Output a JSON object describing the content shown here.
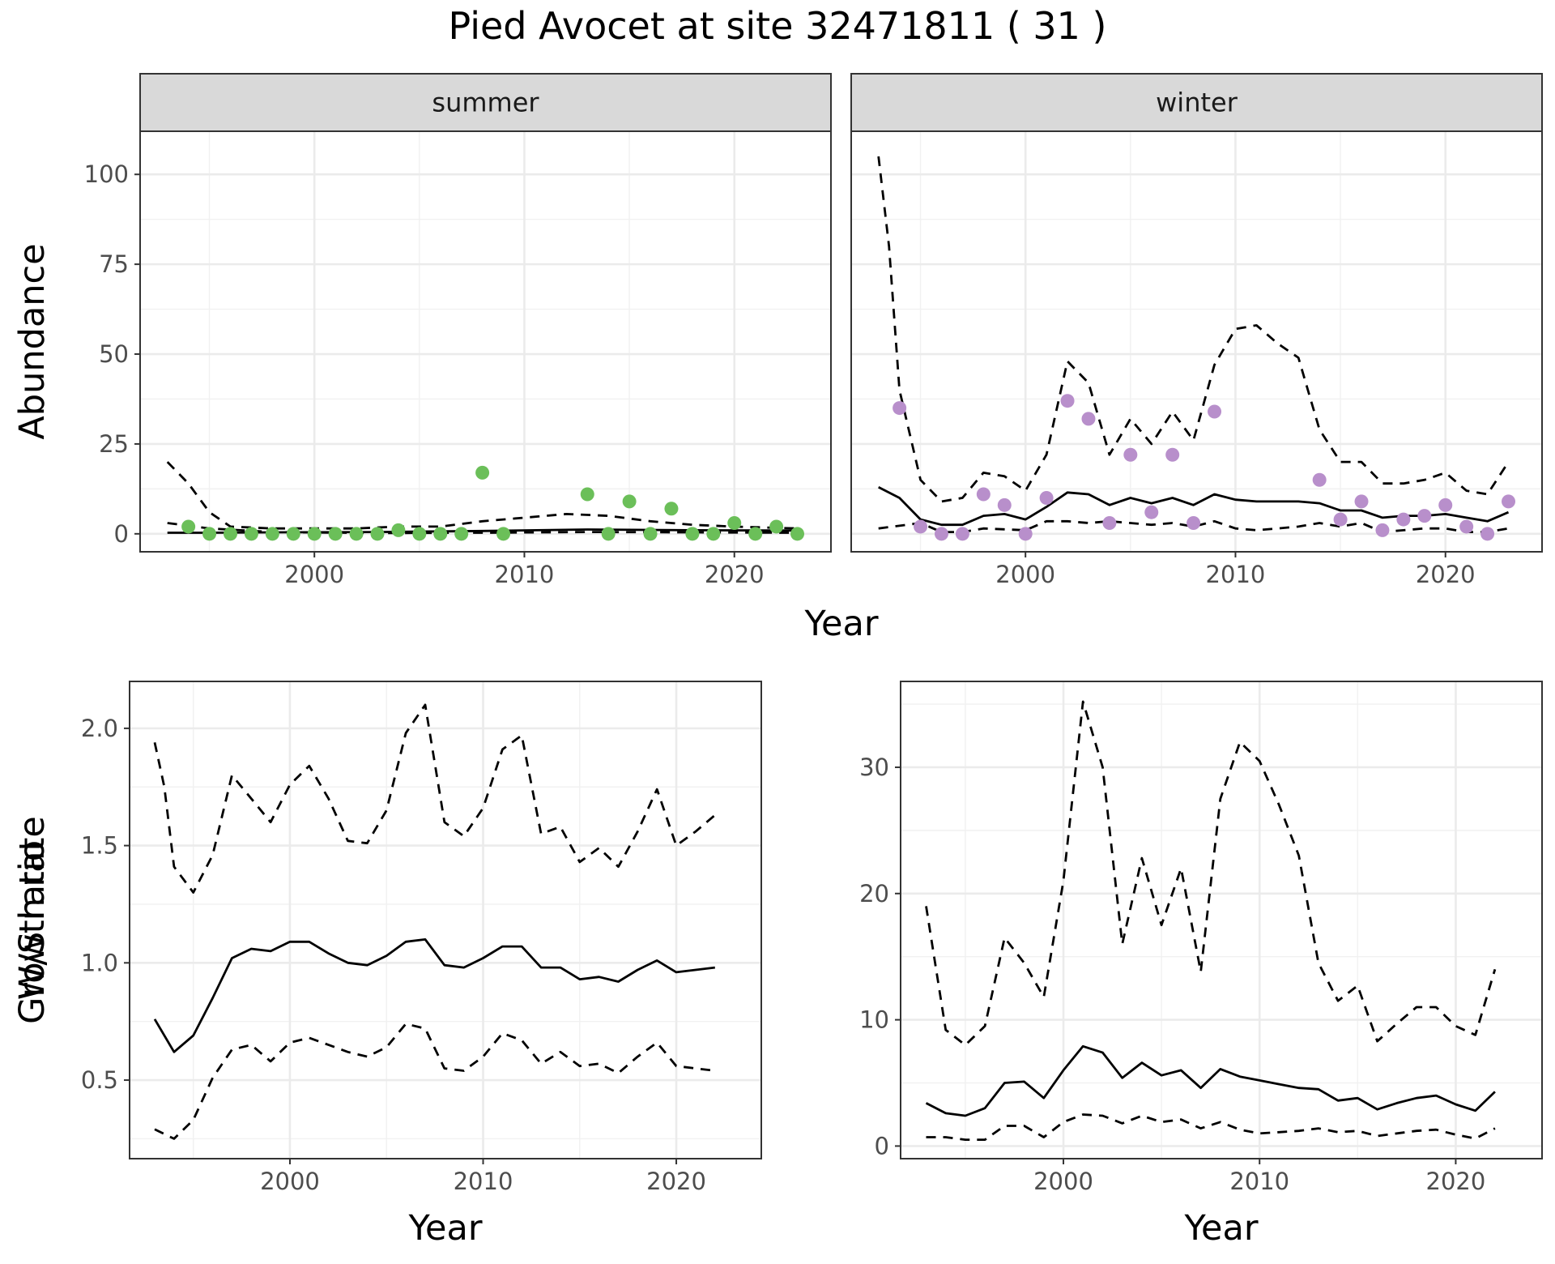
{
  "figure": {
    "title": "Pied Avocet at site 32471811 ( 31 )"
  },
  "chart_data": [
    {
      "type": "scatter",
      "title": "Pied Avocet at site 32471811 ( 31 )",
      "facet": "summer",
      "xlabel": "Year",
      "ylabel": "Abundance",
      "xlim": [
        1991.7,
        2024.6
      ],
      "ylim": [
        -5,
        112
      ],
      "xticks": [
        2000,
        2010,
        2020
      ],
      "yticks": [
        0,
        25,
        50,
        75,
        100
      ],
      "grid": true,
      "point_color": "#6bbf59",
      "points": {
        "x": [
          1994,
          1995,
          1996,
          1997,
          1998,
          1999,
          2000,
          2001,
          2002,
          2003,
          2004,
          2005,
          2006,
          2007,
          2008,
          2009,
          2013,
          2014,
          2015,
          2016,
          2017,
          2018,
          2019,
          2020,
          2021,
          2022,
          2023
        ],
        "y": [
          2,
          0,
          0,
          0,
          0,
          0,
          0,
          0,
          0,
          0,
          1,
          0,
          0,
          0,
          17,
          0,
          11,
          0,
          9,
          0,
          7,
          0,
          0,
          3,
          0,
          2,
          0
        ]
      },
      "series": [
        {
          "role": "fit",
          "style": "solid",
          "x": [
            1993,
            1995,
            1998,
            2003,
            2008,
            2013,
            2018,
            2023
          ],
          "y": [
            0.3,
            0.3,
            0.4,
            0.5,
            0.8,
            1.2,
            1.0,
            0.9
          ]
        },
        {
          "role": "upper",
          "style": "dashed",
          "x": [
            1993,
            1994,
            1995,
            1996,
            1998,
            2000,
            2002,
            2004,
            2006,
            2008,
            2010,
            2012,
            2014,
            2016,
            2018,
            2020,
            2023
          ],
          "y": [
            20,
            14,
            6,
            2,
            1.5,
            1.5,
            1.5,
            2,
            2,
            3.5,
            4.5,
            5.5,
            5,
            3.5,
            2.5,
            2,
            1.5
          ]
        },
        {
          "role": "lower",
          "style": "dashed",
          "x": [
            1993,
            1995,
            1998,
            2003,
            2008,
            2013,
            2018,
            2023
          ],
          "y": [
            3,
            1.5,
            0.5,
            0.2,
            0.3,
            0.5,
            0.4,
            0.3
          ]
        }
      ]
    },
    {
      "type": "scatter",
      "facet": "winter",
      "xlabel": "Year",
      "ylabel": "Abundance",
      "xlim": [
        1991.7,
        2024.6
      ],
      "ylim": [
        -5,
        112
      ],
      "xticks": [
        2000,
        2010,
        2020
      ],
      "yticks": [
        0,
        25,
        50,
        75,
        100
      ],
      "grid": true,
      "point_color": "#b88fcb",
      "points": {
        "x": [
          1994,
          1995,
          1996,
          1997,
          1998,
          1999,
          2000,
          2001,
          2002,
          2003,
          2004,
          2005,
          2006,
          2007,
          2008,
          2009,
          2014,
          2015,
          2016,
          2017,
          2018,
          2019,
          2020,
          2021,
          2022,
          2023
        ],
        "y": [
          35,
          2,
          0,
          0,
          11,
          8,
          0,
          10,
          37,
          32,
          3,
          22,
          6,
          22,
          3,
          34,
          15,
          4,
          9,
          1,
          4,
          5,
          8,
          2,
          0,
          9
        ]
      },
      "series": [
        {
          "role": "fit",
          "style": "solid",
          "x": [
            1993,
            1994,
            1995,
            1996,
            1997,
            1998,
            1999,
            2000,
            2001,
            2002,
            2003,
            2004,
            2005,
            2006,
            2007,
            2008,
            2009,
            2010,
            2011,
            2012,
            2013,
            2014,
            2015,
            2016,
            2017,
            2018,
            2019,
            2020,
            2021,
            2022,
            2023
          ],
          "y": [
            13,
            10,
            4,
            2.5,
            2.5,
            5,
            5.5,
            4,
            7.5,
            11.5,
            11,
            8,
            10,
            8.5,
            10,
            8,
            11,
            9.5,
            9,
            9,
            9,
            8.5,
            6.5,
            6.5,
            4.5,
            5,
            5,
            5.5,
            4.5,
            3.5,
            6
          ]
        },
        {
          "role": "upper",
          "style": "dashed",
          "x": [
            1993,
            1993.5,
            1994,
            1995,
            1996,
            1997,
            1998,
            1999,
            2000,
            2001,
            2002,
            2003,
            2004,
            2005,
            2006,
            2007,
            2008,
            2009,
            2010,
            2011,
            2012,
            2013,
            2014,
            2015,
            2016,
            2017,
            2018,
            2019,
            2020,
            2021,
            2022,
            2023
          ],
          "y": [
            105,
            80,
            40,
            15,
            9,
            10,
            17,
            16,
            12,
            22,
            48,
            42,
            22,
            32,
            25,
            34,
            26,
            47,
            57,
            58,
            53,
            49,
            29,
            20,
            20,
            14,
            14,
            15,
            17,
            12,
            11,
            20
          ]
        },
        {
          "role": "lower",
          "style": "dashed",
          "x": [
            1993,
            1995,
            1996,
            1997,
            1998,
            2000,
            2001,
            2002,
            2003,
            2004,
            2005,
            2006,
            2007,
            2008,
            2009,
            2010,
            2011,
            2012,
            2013,
            2014,
            2015,
            2016,
            2017,
            2018,
            2019,
            2020,
            2021,
            2022,
            2023
          ],
          "y": [
            1.5,
            3,
            0.5,
            0.5,
            1.5,
            1,
            3.5,
            3.5,
            3,
            3.5,
            3,
            2.5,
            3,
            2,
            3.5,
            1.5,
            1,
            1.5,
            2,
            3,
            2,
            3,
            0.5,
            1,
            1.5,
            1.5,
            0.5,
            0.5,
            1.5
          ]
        }
      ]
    },
    {
      "type": "line",
      "xlabel": "Year",
      "ylabel": "Growth rate",
      "xlim": [
        1991.7,
        2024.4
      ],
      "ylim": [
        0.165,
        2.2
      ],
      "xticks": [
        2000,
        2010,
        2020
      ],
      "yticks": [
        0.5,
        1.0,
        1.5,
        2.0
      ],
      "grid": true,
      "series": [
        {
          "role": "fit",
          "style": "solid",
          "x": [
            1993,
            1994,
            1995,
            1996,
            1997,
            1998,
            1999,
            2000,
            2001,
            2002,
            2003,
            2004,
            2005,
            2006,
            2007,
            2008,
            2009,
            2010,
            2011,
            2012,
            2013,
            2014,
            2015,
            2016,
            2017,
            2018,
            2019,
            2020,
            2021,
            2022
          ],
          "y": [
            0.76,
            0.62,
            0.69,
            0.85,
            1.02,
            1.06,
            1.05,
            1.09,
            1.09,
            1.04,
            1.0,
            0.99,
            1.03,
            1.09,
            1.1,
            0.99,
            0.98,
            1.02,
            1.07,
            1.07,
            0.98,
            0.98,
            0.93,
            0.94,
            0.92,
            0.97,
            1.01,
            0.96,
            0.97,
            0.98
          ]
        },
        {
          "role": "upper",
          "style": "dashed",
          "x": [
            1993,
            1993.5,
            1994,
            1995,
            1996,
            1997,
            1998,
            1999,
            2000,
            2001,
            2002,
            2003,
            2004,
            2005,
            2006,
            2007,
            2008,
            2009,
            2010,
            2011,
            2012,
            2013,
            2014,
            2015,
            2016,
            2017,
            2018,
            2019,
            2020,
            2021,
            2022
          ],
          "y": [
            1.94,
            1.75,
            1.41,
            1.3,
            1.46,
            1.8,
            1.7,
            1.6,
            1.76,
            1.84,
            1.7,
            1.52,
            1.51,
            1.65,
            1.98,
            2.1,
            1.6,
            1.54,
            1.66,
            1.91,
            1.97,
            1.55,
            1.58,
            1.43,
            1.49,
            1.41,
            1.56,
            1.74,
            1.5,
            1.56,
            1.63
          ]
        },
        {
          "role": "lower",
          "style": "dashed",
          "x": [
            1993,
            1994,
            1995,
            1996,
            1997,
            1998,
            1999,
            2000,
            2001,
            2002,
            2003,
            2004,
            2005,
            2006,
            2007,
            2008,
            2009,
            2010,
            2011,
            2012,
            2013,
            2014,
            2015,
            2016,
            2017,
            2018,
            2019,
            2020,
            2021,
            2022
          ],
          "y": [
            0.29,
            0.25,
            0.33,
            0.51,
            0.63,
            0.65,
            0.58,
            0.66,
            0.68,
            0.65,
            0.62,
            0.6,
            0.64,
            0.74,
            0.72,
            0.55,
            0.54,
            0.6,
            0.7,
            0.67,
            0.57,
            0.62,
            0.56,
            0.57,
            0.53,
            0.6,
            0.66,
            0.56,
            0.55,
            0.54
          ]
        }
      ]
    },
    {
      "type": "line",
      "xlabel": "Year",
      "ylabel": "W/S ratio",
      "xlim": [
        1991.7,
        2024.4
      ],
      "ylim": [
        -1,
        36.8
      ],
      "xticks": [
        2000,
        2010,
        2020
      ],
      "yticks": [
        0,
        10,
        20,
        30
      ],
      "grid": true,
      "series": [
        {
          "role": "fit",
          "style": "solid",
          "x": [
            1993,
            1994,
            1995,
            1996,
            1997,
            1998,
            1999,
            2000,
            2001,
            2002,
            2003,
            2004,
            2005,
            2006,
            2007,
            2008,
            2009,
            2010,
            2011,
            2012,
            2013,
            2014,
            2015,
            2016,
            2017,
            2018,
            2019,
            2020,
            2021,
            2022
          ],
          "y": [
            3.4,
            2.6,
            2.4,
            3.0,
            5.0,
            5.1,
            3.8,
            6.0,
            7.9,
            7.4,
            5.4,
            6.6,
            5.6,
            6.0,
            4.6,
            6.1,
            5.5,
            5.2,
            4.9,
            4.6,
            4.5,
            3.6,
            3.8,
            2.9,
            3.4,
            3.8,
            4.0,
            3.3,
            2.8,
            4.3
          ]
        },
        {
          "role": "upper",
          "style": "dashed",
          "x": [
            1993,
            1994,
            1995,
            1996,
            1997,
            1998,
            1999,
            2000,
            2001,
            2002,
            2003,
            2004,
            2005,
            2006,
            2007,
            2008,
            2009,
            2010,
            2011,
            2012,
            2013,
            2014,
            2015,
            2016,
            2017,
            2018,
            2019,
            2020,
            2021,
            2022
          ],
          "y": [
            19,
            9.2,
            8,
            9.5,
            16.5,
            14.5,
            11.8,
            21,
            35.2,
            30,
            16,
            22.8,
            17.5,
            22,
            13.8,
            27.5,
            32,
            30.5,
            27,
            23,
            14.5,
            11.5,
            12.7,
            8.3,
            9.7,
            11,
            11,
            9.5,
            8.8,
            14
          ]
        },
        {
          "role": "lower",
          "style": "dashed",
          "x": [
            1993,
            1994,
            1995,
            1996,
            1997,
            1998,
            1999,
            2000,
            2001,
            2002,
            2003,
            2004,
            2005,
            2006,
            2007,
            2008,
            2009,
            2010,
            2011,
            2012,
            2013,
            2014,
            2015,
            2016,
            2017,
            2018,
            2019,
            2020,
            2021,
            2022
          ],
          "y": [
            0.7,
            0.7,
            0.5,
            0.5,
            1.6,
            1.6,
            0.7,
            1.9,
            2.5,
            2.4,
            1.8,
            2.4,
            1.9,
            2.1,
            1.4,
            1.9,
            1.3,
            1.0,
            1.1,
            1.2,
            1.4,
            1.1,
            1.2,
            0.8,
            1.0,
            1.2,
            1.3,
            0.9,
            0.6,
            1.4
          ]
        }
      ]
    }
  ]
}
